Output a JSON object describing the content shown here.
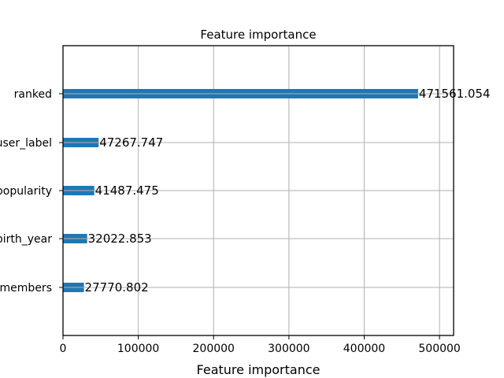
{
  "chart_data": {
    "type": "bar",
    "orientation": "horizontal",
    "title": "Feature importance",
    "xlabel": "Feature importance",
    "ylabel": "",
    "categories": [
      "ranked",
      "user_label",
      "popularity",
      "birth_year",
      "members"
    ],
    "values": [
      471561.054,
      47267.747,
      41487.475,
      32022.853,
      27770.802
    ],
    "value_labels": [
      "471561.054",
      "47267.747",
      "41487.475",
      "32022.853",
      "27770.802"
    ],
    "xlim": [
      0,
      518717
    ],
    "xticks": [
      0,
      100000,
      200000,
      300000,
      400000,
      500000
    ],
    "xtick_labels": [
      "0",
      "100000",
      "200000",
      "300000",
      "400000",
      "500000"
    ],
    "grid": true,
    "bar_color": "#1f77b4",
    "grid_color": "#b0b0b0"
  }
}
